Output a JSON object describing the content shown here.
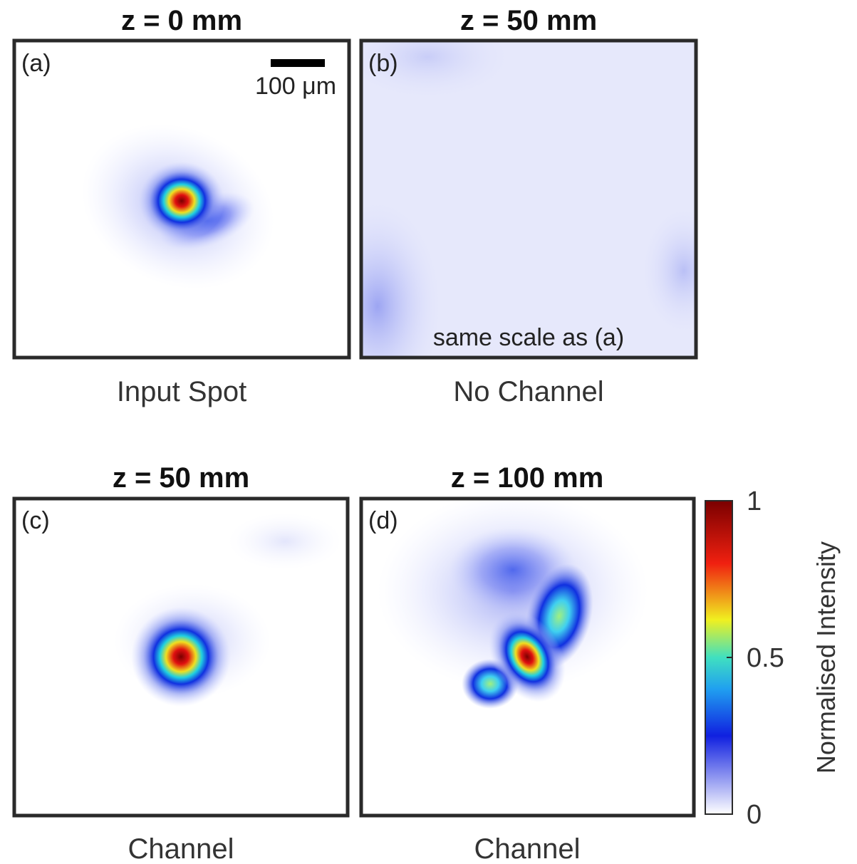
{
  "panels": [
    {
      "title": "z = 0 mm",
      "letter": "(a)",
      "caption": "Input Spot",
      "scale_bar": "100 μm"
    },
    {
      "title": "z = 50 mm",
      "letter": "(b)",
      "caption": "No Channel",
      "note": "same scale as (a)"
    },
    {
      "title": "z = 50 mm",
      "letter": "(c)",
      "caption": "Channel"
    },
    {
      "title": "z = 100 mm",
      "letter": "(d)",
      "caption": "Channel"
    }
  ],
  "colorbar": {
    "label": "Normalised Intensity",
    "lim": [
      0,
      1
    ],
    "ticks": [
      0,
      0.5,
      1
    ]
  }
}
